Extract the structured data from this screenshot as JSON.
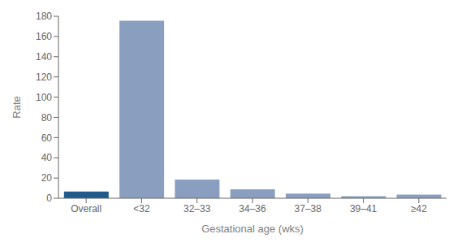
{
  "chart_data": {
    "type": "bar",
    "categories": [
      "Overall",
      "<32",
      "32–33",
      "34–36",
      "37–38",
      "39–41",
      "≥42"
    ],
    "values": [
      6.6,
      175.5,
      18.5,
      8.9,
      4.6,
      2.1,
      3.6
    ],
    "colors": [
      "#1f5a8b",
      "#8a9fc0",
      "#8a9fc0",
      "#8a9fc0",
      "#8a9fc0",
      "#8a9fc0",
      "#8a9fc0"
    ],
    "xlabel": "Gestational age (wks)",
    "ylabel": "Rate",
    "ylim": [
      0,
      180
    ],
    "yticks": [
      0,
      20,
      40,
      60,
      80,
      100,
      120,
      140,
      160,
      180
    ],
    "grid": false
  }
}
